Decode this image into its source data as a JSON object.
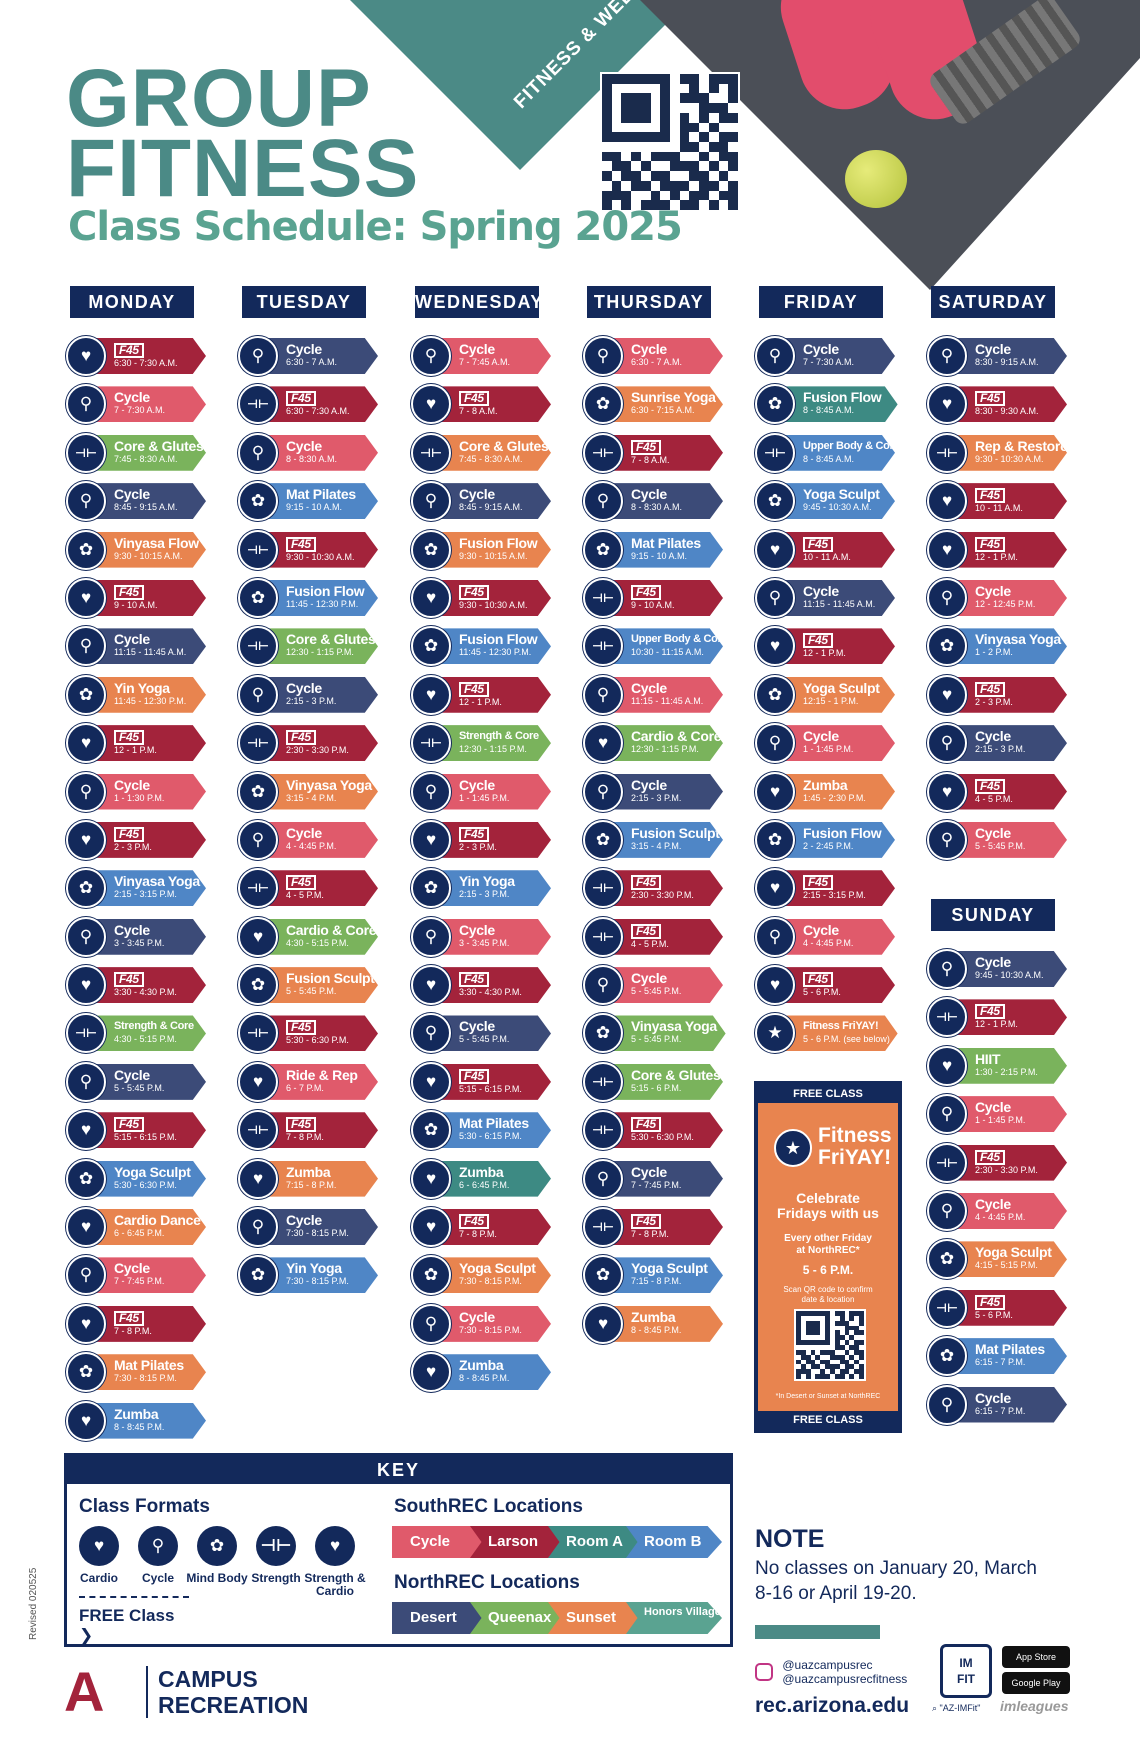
{
  "header": {
    "title_line1": "GROUP",
    "title_line2": "FITNESS",
    "subtitle": "Class Schedule: Spring 2025",
    "banner_text": "FITNESS & WELLNESS"
  },
  "days": [
    {
      "name": "MONDAY",
      "classes": [
        {
          "icon": "cardio",
          "name": "F45",
          "time": "6:30 - 7:30 A.M.",
          "color": "red"
        },
        {
          "icon": "cycle",
          "name": "Cycle",
          "time": "7 - 7:30 A.M.",
          "color": "pink"
        },
        {
          "icon": "strength",
          "name": "Core & Glutes",
          "time": "7:45 - 8:30 A.M.",
          "color": "grn"
        },
        {
          "icon": "cycle",
          "name": "Cycle",
          "time": "8:45 - 9:15 A.M.",
          "color": "cyc"
        },
        {
          "icon": "mind",
          "name": "Vinyasa Flow",
          "time": "9:30 - 10:15 A.M.",
          "color": "ora"
        },
        {
          "icon": "cardio",
          "name": "F45",
          "time": "9 - 10 A.M.",
          "color": "red"
        },
        {
          "icon": "cycle",
          "name": "Cycle",
          "time": "11:15 - 11:45 A.M.",
          "color": "cyc"
        },
        {
          "icon": "mind",
          "name": "Yin Yoga",
          "time": "11:45 - 12:30 P.M.",
          "color": "ora"
        },
        {
          "icon": "cardio",
          "name": "F45",
          "time": "12 - 1 P.M.",
          "color": "red"
        },
        {
          "icon": "cycle",
          "name": "Cycle",
          "time": "1 - 1:30 P.M.",
          "color": "pink"
        },
        {
          "icon": "cardio",
          "name": "F45",
          "time": "2 - 3 P.M.",
          "color": "red"
        },
        {
          "icon": "mind",
          "name": "Vinyasa Yoga",
          "time": "2:15 - 3:15 P.M.",
          "color": "blu"
        },
        {
          "icon": "cycle",
          "name": "Cycle",
          "time": "3 - 3:45 P.M.",
          "color": "cyc"
        },
        {
          "icon": "cardio",
          "name": "F45",
          "time": "3:30 - 4:30 P.M.",
          "color": "red"
        },
        {
          "icon": "strength",
          "name": "Strength & Core",
          "time": "4:30 - 5:15 P.M.",
          "color": "grn"
        },
        {
          "icon": "cycle",
          "name": "Cycle",
          "time": "5 - 5:45 P.M.",
          "color": "cyc"
        },
        {
          "icon": "cardio",
          "name": "F45",
          "time": "5:15 - 6:15 P.M.",
          "color": "red"
        },
        {
          "icon": "mind",
          "name": "Yoga Sculpt",
          "time": "5:30 - 6:30 P.M.",
          "color": "blu"
        },
        {
          "icon": "cardio",
          "name": "Cardio Dance",
          "time": "6 - 6:45 P.M.",
          "color": "ora"
        },
        {
          "icon": "cycle",
          "name": "Cycle",
          "time": "7 - 7:45 P.M.",
          "color": "pink"
        },
        {
          "icon": "cardio",
          "name": "F45",
          "time": "7 - 8 P.M.",
          "color": "red"
        },
        {
          "icon": "mind",
          "name": "Mat Pilates",
          "time": "7:30 - 8:15 P.M.",
          "color": "ora"
        },
        {
          "icon": "cardio",
          "name": "Zumba",
          "time": "8 - 8:45 P.M.",
          "color": "blu"
        }
      ]
    },
    {
      "name": "TUESDAY",
      "classes": [
        {
          "icon": "cycle",
          "name": "Cycle",
          "time": "6:30 - 7 A.M.",
          "color": "cyc"
        },
        {
          "icon": "strength",
          "name": "F45",
          "time": "6:30 - 7:30 A.M.",
          "color": "red"
        },
        {
          "icon": "cycle",
          "name": "Cycle",
          "time": "8 - 8:30 A.M.",
          "color": "pink"
        },
        {
          "icon": "mind",
          "name": "Mat Pilates",
          "time": "9:15 - 10 A.M.",
          "color": "blu"
        },
        {
          "icon": "strength",
          "name": "F45",
          "time": "9:30 - 10:30 A.M.",
          "color": "red"
        },
        {
          "icon": "mind",
          "name": "Fusion Flow",
          "time": "11:45 - 12:30 P.M.",
          "color": "blu"
        },
        {
          "icon": "strength",
          "name": "Core & Glutes",
          "time": "12:30 - 1:15 P.M.",
          "color": "grn"
        },
        {
          "icon": "cycle",
          "name": "Cycle",
          "time": "2:15 - 3 P.M.",
          "color": "cyc"
        },
        {
          "icon": "strength",
          "name": "F45",
          "time": "2:30 - 3:30 P.M.",
          "color": "red"
        },
        {
          "icon": "mind",
          "name": "Vinyasa Yoga",
          "time": "3:15 - 4 P.M.",
          "color": "ora"
        },
        {
          "icon": "cycle",
          "name": "Cycle",
          "time": "4 - 4:45 P.M.",
          "color": "pink"
        },
        {
          "icon": "strength",
          "name": "F45",
          "time": "4 - 5 P.M.",
          "color": "red"
        },
        {
          "icon": "sc",
          "name": "Cardio & Core",
          "time": "4:30 - 5:15 P.M.",
          "color": "grn"
        },
        {
          "icon": "mind",
          "name": "Fusion Sculpt",
          "time": "5 - 5:45 P.M.",
          "color": "ora"
        },
        {
          "icon": "strength",
          "name": "F45",
          "time": "5:30 - 6:30 P.M.",
          "color": "red"
        },
        {
          "icon": "sc",
          "name": "Ride & Rep",
          "time": "6 - 7 P.M.",
          "color": "pink"
        },
        {
          "icon": "strength",
          "name": "F45",
          "time": "7 - 8 P.M.",
          "color": "red"
        },
        {
          "icon": "cardio",
          "name": "Zumba",
          "time": "7:15 - 8 P.M.",
          "color": "ora"
        },
        {
          "icon": "cycle",
          "name": "Cycle",
          "time": "7:30 - 8:15 P.M.",
          "color": "cyc"
        },
        {
          "icon": "mind",
          "name": "Yin Yoga",
          "time": "7:30 - 8:15 P.M.",
          "color": "blu"
        }
      ]
    },
    {
      "name": "WEDNESDAY",
      "classes": [
        {
          "icon": "cycle",
          "name": "Cycle",
          "time": "7 - 7:45 A.M.",
          "color": "pink"
        },
        {
          "icon": "cardio",
          "name": "F45",
          "time": "7 - 8 A.M.",
          "color": "red"
        },
        {
          "icon": "strength",
          "name": "Core & Glutes",
          "time": "7:45 - 8:30 A.M.",
          "color": "ora"
        },
        {
          "icon": "cycle",
          "name": "Cycle",
          "time": "8:45 - 9:15 A.M.",
          "color": "cyc"
        },
        {
          "icon": "mind",
          "name": "Fusion Flow",
          "time": "9:30 - 10:15 A.M.",
          "color": "ora"
        },
        {
          "icon": "cardio",
          "name": "F45",
          "time": "9:30 - 10:30 A.M.",
          "color": "red"
        },
        {
          "icon": "mind",
          "name": "Fusion Flow",
          "time": "11:45 - 12:30 P.M.",
          "color": "blu"
        },
        {
          "icon": "cardio",
          "name": "F45",
          "time": "12 - 1 P.M.",
          "color": "red"
        },
        {
          "icon": "strength",
          "name": "Strength & Core",
          "time": "12:30 - 1:15 P.M.",
          "color": "grn"
        },
        {
          "icon": "cycle",
          "name": "Cycle",
          "time": "1 - 1:45 P.M.",
          "color": "pink"
        },
        {
          "icon": "cardio",
          "name": "F45",
          "time": "2 - 3 P.M.",
          "color": "red"
        },
        {
          "icon": "mind",
          "name": "Yin Yoga",
          "time": "2:15 - 3 P.M.",
          "color": "blu"
        },
        {
          "icon": "cycle",
          "name": "Cycle",
          "time": "3 - 3:45 P.M.",
          "color": "pink"
        },
        {
          "icon": "cardio",
          "name": "F45",
          "time": "3:30 - 4:30 P.M.",
          "color": "red"
        },
        {
          "icon": "cycle",
          "name": "Cycle",
          "time": "5 - 5:45 P.M.",
          "color": "cyc"
        },
        {
          "icon": "cardio",
          "name": "F45",
          "time": "5:15 - 6:15 P.M.",
          "color": "red"
        },
        {
          "icon": "mind",
          "name": "Mat Pilates",
          "time": "5:30 - 6:15 P.M.",
          "color": "blu"
        },
        {
          "icon": "cardio",
          "name": "Zumba",
          "time": "6 - 6:45 P.M.",
          "color": "teal"
        },
        {
          "icon": "cardio",
          "name": "F45",
          "time": "7 - 8 P.M.",
          "color": "red"
        },
        {
          "icon": "mind",
          "name": "Yoga Sculpt",
          "time": "7:30 - 8:15 P.M.",
          "color": "ora"
        },
        {
          "icon": "cycle",
          "name": "Cycle",
          "time": "7:30 - 8:15 P.M.",
          "color": "pink"
        },
        {
          "icon": "cardio",
          "name": "Zumba",
          "time": "8 - 8:45 P.M.",
          "color": "blu"
        }
      ]
    },
    {
      "name": "THURSDAY",
      "classes": [
        {
          "icon": "cycle",
          "name": "Cycle",
          "time": "6:30 - 7 A.M.",
          "color": "pink"
        },
        {
          "icon": "mind",
          "name": "Sunrise Yoga",
          "time": "6:30 - 7:15 A.M.",
          "color": "ora"
        },
        {
          "icon": "strength",
          "name": "F45",
          "time": "7 - 8 A.M.",
          "color": "red"
        },
        {
          "icon": "cycle",
          "name": "Cycle",
          "time": "8 - 8:30 A.M.",
          "color": "cyc"
        },
        {
          "icon": "mind",
          "name": "Mat Pilates",
          "time": "9:15 - 10 A.M.",
          "color": "blu"
        },
        {
          "icon": "strength",
          "name": "F45",
          "time": "9 - 10 A.M.",
          "color": "red"
        },
        {
          "icon": "strength",
          "name": "Upper Body & Core",
          "time": "10:30 - 11:15 A.M.",
          "color": "blu"
        },
        {
          "icon": "cycle",
          "name": "Cycle",
          "time": "11:15 - 11:45 A.M.",
          "color": "pink"
        },
        {
          "icon": "sc",
          "name": "Cardio & Core",
          "time": "12:30 - 1:15 P.M.",
          "color": "grn"
        },
        {
          "icon": "cycle",
          "name": "Cycle",
          "time": "2:15 - 3 P.M.",
          "color": "cyc"
        },
        {
          "icon": "mind",
          "name": "Fusion Sculpt",
          "time": "3:15 - 4 P.M.",
          "color": "blu"
        },
        {
          "icon": "strength",
          "name": "F45",
          "time": "2:30 - 3:30 P.M.",
          "color": "red"
        },
        {
          "icon": "strength",
          "name": "F45",
          "time": "4 - 5 P.M.",
          "color": "red"
        },
        {
          "icon": "cycle",
          "name": "Cycle",
          "time": "5 - 5:45 P.M.",
          "color": "pink"
        },
        {
          "icon": "mind",
          "name": "Vinyasa Yoga",
          "time": "5 - 5:45 P.M.",
          "color": "grn",
          "free": true
        },
        {
          "icon": "strength",
          "name": "Core & Glutes",
          "time": "5:15 - 6 P.M.",
          "color": "grn"
        },
        {
          "icon": "strength",
          "name": "F45",
          "time": "5:30 - 6:30 P.M.",
          "color": "red"
        },
        {
          "icon": "cycle",
          "name": "Cycle",
          "time": "7 - 7:45 P.M.",
          "color": "cyc"
        },
        {
          "icon": "strength",
          "name": "F45",
          "time": "7 - 8 P.M.",
          "color": "red"
        },
        {
          "icon": "mind",
          "name": "Yoga Sculpt",
          "time": "7:15 - 8 P.M.",
          "color": "blu"
        },
        {
          "icon": "cardio",
          "name": "Zumba",
          "time": "8 - 8:45 P.M.",
          "color": "ora"
        }
      ]
    },
    {
      "name": "FRIDAY",
      "classes": [
        {
          "icon": "cycle",
          "name": "Cycle",
          "time": "7 - 7:30 A.M.",
          "color": "cyc"
        },
        {
          "icon": "mind",
          "name": "Fusion Flow",
          "time": "8 - 8:45 A.M.",
          "color": "teal",
          "free": true
        },
        {
          "icon": "strength",
          "name": "Upper Body & Core",
          "time": "8 - 8:45 A.M.",
          "color": "blu"
        },
        {
          "icon": "mind",
          "name": "Yoga Sculpt",
          "time": "9:45 - 10:30 A.M.",
          "color": "blu"
        },
        {
          "icon": "sc",
          "name": "F45",
          "time": "10 - 11 A.M.",
          "color": "red"
        },
        {
          "icon": "cycle",
          "name": "Cycle",
          "time": "11:15 - 11:45 A.M.",
          "color": "cyc"
        },
        {
          "icon": "sc",
          "name": "F45",
          "time": "12 - 1 P.M.",
          "color": "red"
        },
        {
          "icon": "mind",
          "name": "Yoga Sculpt",
          "time": "12:15 - 1 P.M.",
          "color": "ora"
        },
        {
          "icon": "cycle",
          "name": "Cycle",
          "time": "1 - 1:45 P.M.",
          "color": "pink"
        },
        {
          "icon": "cardio",
          "name": "Zumba",
          "time": "1:45 - 2:30 P.M.",
          "color": "ora"
        },
        {
          "icon": "mind",
          "name": "Fusion Flow",
          "time": "2 - 2:45 P.M.",
          "color": "blu"
        },
        {
          "icon": "sc",
          "name": "F45",
          "time": "2:15 - 3:15 P.M.",
          "color": "red"
        },
        {
          "icon": "cycle",
          "name": "Cycle",
          "time": "4 - 4:45 P.M.",
          "color": "pink"
        },
        {
          "icon": "sc",
          "name": "F45",
          "time": "5 - 6 P.M.",
          "color": "red"
        },
        {
          "icon": "star",
          "name": "Fitness FriYAY!",
          "time": "5 - 6 P.M. (see below)",
          "color": "ora",
          "free": true
        }
      ]
    },
    {
      "name": "SATURDAY",
      "classes": [
        {
          "icon": "cycle",
          "name": "Cycle",
          "time": "8:30 - 9:15 A.M.",
          "color": "cyc"
        },
        {
          "icon": "sc",
          "name": "F45",
          "time": "8:30 - 9:30 A.M.",
          "color": "red"
        },
        {
          "icon": "strength",
          "name": "Rep & Restore",
          "time": "9:30 - 10:30 A.M.",
          "color": "ora"
        },
        {
          "icon": "sc",
          "name": "F45",
          "time": "10 - 11 A.M.",
          "color": "red"
        },
        {
          "icon": "sc",
          "name": "F45",
          "time": "12 - 1 P.M.",
          "color": "red"
        },
        {
          "icon": "cycle",
          "name": "Cycle",
          "time": "12 - 12:45 P.M.",
          "color": "pink"
        },
        {
          "icon": "mind",
          "name": "Vinyasa Yoga",
          "time": "1 - 2 P.M.",
          "color": "blu"
        },
        {
          "icon": "sc",
          "name": "F45",
          "time": "2 - 3 P.M.",
          "color": "red"
        },
        {
          "icon": "cycle",
          "name": "Cycle",
          "time": "2:15 - 3 P.M.",
          "color": "cyc"
        },
        {
          "icon": "sc",
          "name": "F45",
          "time": "4 - 5 P.M.",
          "color": "red"
        },
        {
          "icon": "cycle",
          "name": "Cycle",
          "time": "5 - 5:45 P.M.",
          "color": "pink"
        }
      ]
    },
    {
      "name": "SUNDAY",
      "classes": [
        {
          "icon": "cycle",
          "name": "Cycle",
          "time": "9:45 - 10:30 A.M.",
          "color": "cyc"
        },
        {
          "icon": "strength",
          "name": "F45",
          "time": "12 - 1 P.M.",
          "color": "red"
        },
        {
          "icon": "cardio",
          "name": "HIIT",
          "time": "1:30 - 2:15 P.M.",
          "color": "grn"
        },
        {
          "icon": "cycle",
          "name": "Cycle",
          "time": "1 - 1:45 P.M.",
          "color": "pink"
        },
        {
          "icon": "strength",
          "name": "F45",
          "time": "2:30 - 3:30 P.M.",
          "color": "red"
        },
        {
          "icon": "cycle",
          "name": "Cycle",
          "time": "4 - 4:45 P.M.",
          "color": "pink"
        },
        {
          "icon": "mind",
          "name": "Yoga Sculpt",
          "time": "4:15 - 5:15 P.M.",
          "color": "ora"
        },
        {
          "icon": "strength",
          "name": "F45",
          "time": "5 - 6 P.M.",
          "color": "red"
        },
        {
          "icon": "mind",
          "name": "Mat Pilates",
          "time": "6:15 - 7 P.M.",
          "color": "blu"
        },
        {
          "icon": "cycle",
          "name": "Cycle",
          "time": "6:15 - 7 P.M.",
          "color": "cyc"
        }
      ]
    }
  ],
  "free_box": {
    "top": "FREE CLASS",
    "title1": "Fitness",
    "title2": "FriYAY!",
    "line1": "Celebrate",
    "line2": "Fridays with us",
    "line3": "Every other Friday",
    "line4": "at NorthREC*",
    "time": "5 - 6 P.M.",
    "scan1": "Scan QR code to confirm",
    "scan2": "date & location",
    "footnote": "*In Desert or Sunset at NorthREC",
    "bottom": "FREE CLASS"
  },
  "key": {
    "title": "KEY",
    "formats_title": "Class Formats",
    "formats": [
      "Cardio",
      "Cycle",
      "Mind Body",
      "Strength",
      "Strength & Cardio"
    ],
    "free_label": "FREE Class",
    "south_title": "SouthREC Locations",
    "south": [
      "Cycle",
      "Larson",
      "Room A",
      "Room B"
    ],
    "north_title": "NorthREC Locations",
    "north": [
      "Desert",
      "Queenax",
      "Sunset",
      "Honors Village"
    ]
  },
  "note": {
    "title": "NOTE",
    "text": "No classes on January 20, March 8-16 or April 19-20."
  },
  "footer": {
    "revised": "Revised 020525",
    "brand1": "CAMPUS",
    "brand2": "RECREATION",
    "ig1": "@uazcampusrec",
    "ig2": "@uazcampusrecfitness",
    "website": "rec.arizona.edu",
    "imfit": "\"AZ-IMFit\"",
    "appstore": "App Store",
    "googleplay": "Google Play",
    "imleagues": "imleagues"
  },
  "colors": {
    "cyc": "#3c4b78",
    "pink": "#e05a6b",
    "red": "#a3233b",
    "ora": "#e8844f",
    "grn": "#7ab35c",
    "blu": "#4f86c6",
    "teal": "#3d8a83",
    "navy": "#13295b"
  }
}
